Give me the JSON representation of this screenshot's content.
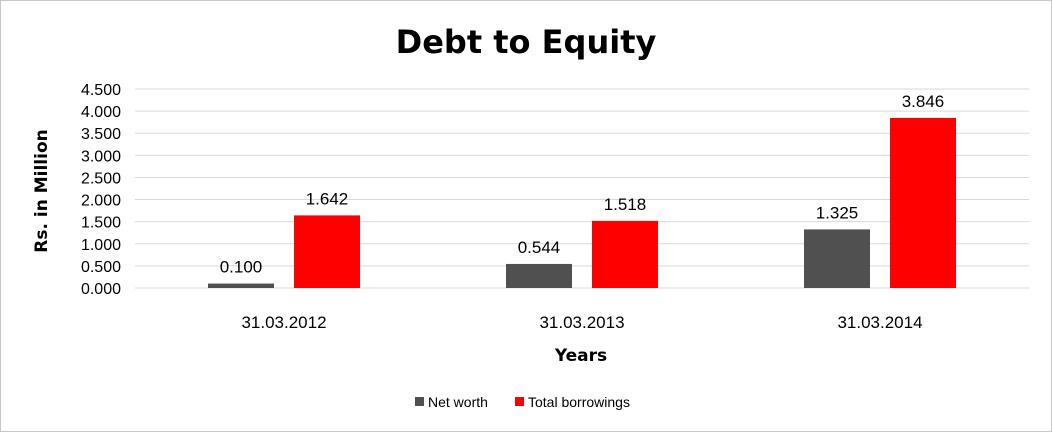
{
  "chart_data": {
    "type": "bar",
    "title": "Debt to Equity",
    "xlabel": "Years",
    "ylabel": "Rs. in Million",
    "categories": [
      "31.03.2012",
      "31.03.2013",
      "31.03.2014"
    ],
    "series": [
      {
        "name": "Net worth",
        "values": [
          0.1,
          0.544,
          1.325
        ],
        "labels": [
          "0.100",
          "0.544",
          "1.325"
        ],
        "color": "#505050"
      },
      {
        "name": "Total borrowings",
        "values": [
          1.642,
          1.518,
          3.846
        ],
        "labels": [
          "1.642",
          "1.518",
          "3.846"
        ],
        "color": "#ff0000"
      }
    ],
    "ylim": [
      0,
      4.5
    ],
    "yticks": [
      "0.000",
      "0.500",
      "1.000",
      "1.500",
      "2.000",
      "2.500",
      "3.000",
      "3.500",
      "4.000",
      "4.500"
    ],
    "grid": true,
    "legend": "bottom",
    "grid_color": "#d9d9d9"
  }
}
